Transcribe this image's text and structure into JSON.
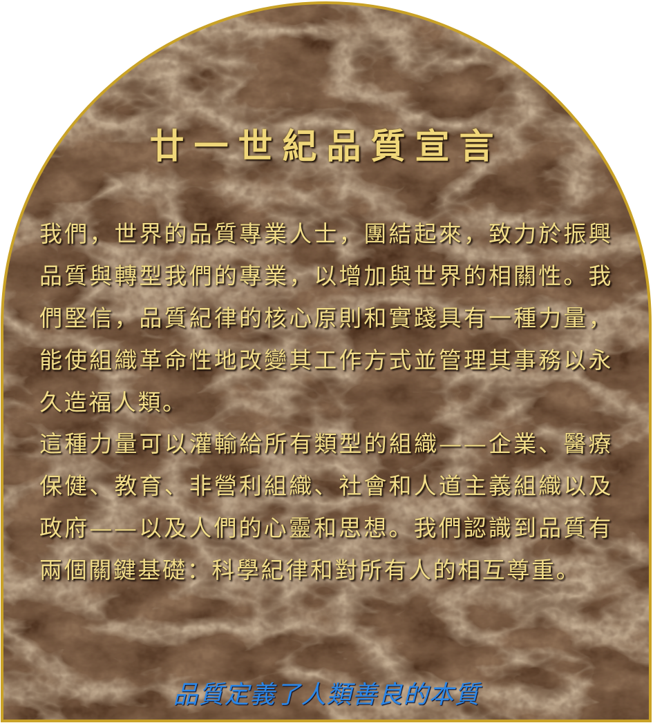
{
  "title": "廿一世紀品質宣言",
  "paragraphs": [
    "我們，世界的品質專業人士，團結起來，致力於振興品質與轉型我們的專業，以增加與世界的相關性。我們堅信，品質紀律的核心原則和實踐具有一種力量，能使組織革命性地改變其工作方式並管理其事務以永久造福人類。",
    "這種力量可以灌輸給所有類型的組織——企業、醫療保健、教育、非營利組織、社會和人道主義組織以及政府——以及人們的心靈和思想。我們認識到品質有兩個關鍵基礎：科學紀律和對所有人的相互尊重。"
  ],
  "footer": "品質定義了人類善良的本質",
  "colors": {
    "marble_base": "#4a2e1c",
    "border_gold": "#c9a227",
    "title_gold": "#f0d77a",
    "text_gold": "#f2dd8a",
    "footer_blue": "#2b86e6"
  }
}
